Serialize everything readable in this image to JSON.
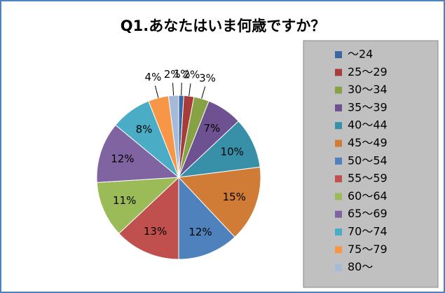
{
  "chart_data": {
    "type": "pie",
    "title": "Q1.あなたはいま何歳ですか？",
    "categories": [
      "～24",
      "25～29",
      "30～34",
      "35～39",
      "40～44",
      "45～49",
      "50～54",
      "55～59",
      "60～64",
      "65～69",
      "70～74",
      "75～79",
      "80～"
    ],
    "values": [
      1,
      2,
      3,
      7,
      10,
      15,
      12,
      13,
      11,
      12,
      8,
      4,
      2
    ],
    "value_labels": [
      "1%",
      "2%",
      "3%",
      "7%",
      "10%",
      "15%",
      "12%",
      "13%",
      "11%",
      "12%",
      "8%",
      "4%",
      "2%"
    ],
    "colors": [
      "#3a67a0",
      "#a83c3a",
      "#86a244",
      "#6e5190",
      "#3790a8",
      "#d07c36",
      "#4f81bd",
      "#c0504d",
      "#9bbb59",
      "#8064a2",
      "#4bacc6",
      "#f79646",
      "#a5b9d9"
    ],
    "legend": "right"
  }
}
